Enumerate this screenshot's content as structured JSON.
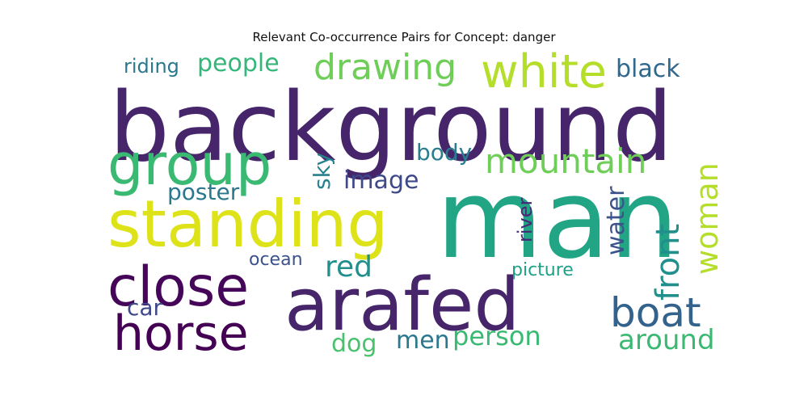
{
  "chart_data": {
    "type": "wordcloud",
    "title": "Relevant Co-occurrence Pairs for Concept: danger",
    "words": [
      {
        "text": "man",
        "color": "#21a585"
      },
      {
        "text": "background",
        "color": "#46256b"
      },
      {
        "text": "arafed",
        "color": "#46256b"
      },
      {
        "text": "standing",
        "color": "#dde318"
      },
      {
        "text": "group",
        "color": "#3ab973"
      },
      {
        "text": "close",
        "color": "#450558"
      },
      {
        "text": "horse",
        "color": "#440154"
      },
      {
        "text": "white",
        "color": "#b5de2b"
      },
      {
        "text": "boat",
        "color": "#33638d"
      },
      {
        "text": "drawing",
        "color": "#6ece58"
      },
      {
        "text": "mountain",
        "color": "#6ece58"
      },
      {
        "text": "front",
        "color": "#21908d"
      },
      {
        "text": "woman",
        "color": "#b5de2b"
      },
      {
        "text": "red",
        "color": "#21908d"
      },
      {
        "text": "around",
        "color": "#3ab973"
      },
      {
        "text": "person",
        "color": "#3ab973"
      },
      {
        "text": "water",
        "color": "#3b528b"
      },
      {
        "text": "people",
        "color": "#35b779"
      },
      {
        "text": "black",
        "color": "#31688e"
      },
      {
        "text": "image",
        "color": "#3e4989"
      },
      {
        "text": "body",
        "color": "#287d8e"
      },
      {
        "text": "poster",
        "color": "#2a788e"
      },
      {
        "text": "sky",
        "color": "#26828e"
      },
      {
        "text": "dog",
        "color": "#4ac16d"
      },
      {
        "text": "men",
        "color": "#2a788e"
      },
      {
        "text": "car",
        "color": "#3e4989"
      },
      {
        "text": "riding",
        "color": "#2a788e"
      },
      {
        "text": "river",
        "color": "#482878"
      },
      {
        "text": "ocean",
        "color": "#3b528b"
      },
      {
        "text": "picture",
        "color": "#1fa187"
      }
    ]
  }
}
